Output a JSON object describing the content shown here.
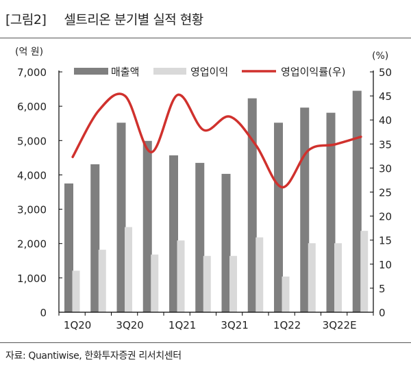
{
  "title_tag": "[그림2]",
  "title": "셀트리온 분기별 실적 현황",
  "source": "자료: Quantiwise, 한화투자증권 리서치센터",
  "chart_data": {
    "type": "bar+line",
    "categories": [
      "1Q20",
      "2Q20",
      "3Q20",
      "4Q20",
      "1Q21",
      "2Q21",
      "3Q21",
      "4Q21",
      "1Q22",
      "2Q22",
      "3Q22E",
      "4Q22E"
    ],
    "x_tick_labels": [
      "1Q20",
      "",
      "3Q20",
      "",
      "1Q21",
      "",
      "3Q21",
      "",
      "1Q22",
      "",
      "3Q22E",
      ""
    ],
    "left_axis": {
      "unit": "(억 원)",
      "range": [
        0,
        7000
      ],
      "ticks": [
        "0",
        "1,000",
        "2,000",
        "3,000",
        "4,000",
        "5,000",
        "6,000",
        "7,000"
      ]
    },
    "right_axis": {
      "unit": "(%)",
      "range": [
        0,
        50
      ],
      "ticks": [
        "0",
        "5",
        "10",
        "15",
        "20",
        "25",
        "30",
        "35",
        "40",
        "45",
        "50"
      ]
    },
    "series": [
      {
        "name": "매출액",
        "type": "bar",
        "axis": "left",
        "color": "#7f7f7f",
        "values": [
          3750,
          4310,
          5520,
          4990,
          4570,
          4350,
          4030,
          6230,
          5520,
          5960,
          5810,
          6450
        ]
      },
      {
        "name": "영업이익",
        "type": "bar",
        "axis": "left",
        "color": "#d9d9d9",
        "values": [
          1210,
          1820,
          2480,
          1680,
          2090,
          1640,
          1640,
          2180,
          1040,
          2010,
          2010,
          2370
        ]
      },
      {
        "name": "영업이익률(우)",
        "type": "line",
        "axis": "right",
        "color": "#d0312d",
        "values": [
          32.3,
          42.0,
          45.0,
          33.3,
          45.2,
          37.9,
          40.7,
          34.7,
          26.0,
          33.7,
          34.9,
          36.5
        ]
      }
    ],
    "legend": "top",
    "grid": false
  }
}
